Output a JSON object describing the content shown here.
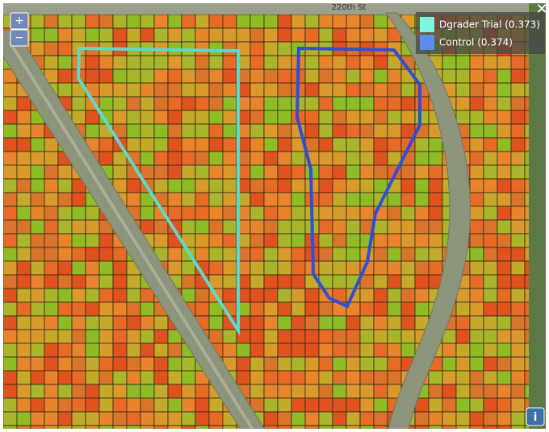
{
  "map": {
    "road_label": "220th St",
    "zoom_in": "+",
    "zoom_out": "−",
    "close": "✕",
    "info": "i",
    "legend": [
      {
        "label": "Dgrader Trial (0.373)",
        "color": "#7ff5dc"
      },
      {
        "label": "Control (0.374)",
        "color": "#5b8cf0"
      }
    ]
  }
}
